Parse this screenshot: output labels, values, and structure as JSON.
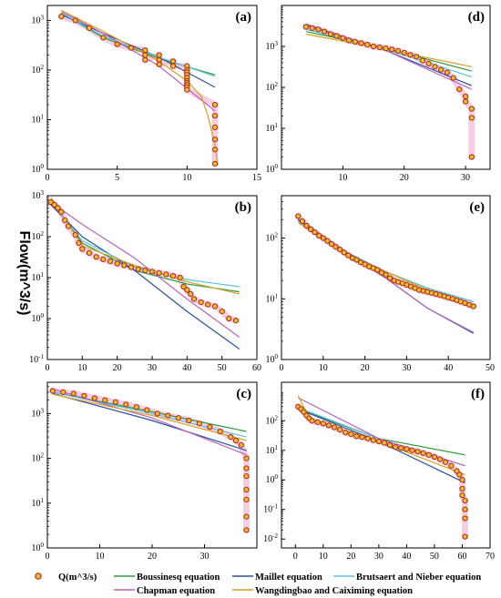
{
  "figure": {
    "ylabel": "Flow(m^3/s)",
    "colors": {
      "observed": "#b22222",
      "observed_fill": "#f0c020",
      "obs_band": "#f3c6da",
      "Boussinesq": "#2f9a3a",
      "Maillet": "#2b4fa0",
      "Brutsaert": "#5bc3e0",
      "Chapman": "#b864c0",
      "Wangdingbao": "#d8a020"
    }
  },
  "legend": {
    "observed": "Q(m^3/s)",
    "boussinesq": "Boussinesq equation",
    "maillet": "Maillet equation",
    "brutsaert": "Brutsaert and Nieber equation",
    "chapman": "Chapman equation",
    "wangdingbao": "Wangdingbao and Caiximing equation"
  },
  "chart_data": [
    {
      "panel": "(a)",
      "type": "scatter",
      "ylog": true,
      "xlim": [
        0,
        15
      ],
      "xticks": [
        0,
        5,
        10,
        15
      ],
      "ylim": [
        1,
        2000
      ],
      "yticks": [
        "10^0",
        "10^1",
        "10^2",
        "10^3"
      ],
      "observed": {
        "x": [
          1,
          2,
          3,
          4,
          5,
          6,
          7,
          7,
          7,
          8,
          8,
          8,
          9,
          9,
          10,
          10,
          10,
          10,
          10,
          10,
          10,
          10,
          10,
          10,
          12,
          12,
          12,
          12,
          12,
          12
        ],
        "y": [
          1200,
          1000,
          700,
          450,
          330,
          280,
          250,
          200,
          160,
          200,
          160,
          130,
          150,
          120,
          120,
          100,
          90,
          80,
          70,
          60,
          55,
          50,
          45,
          40,
          20,
          12,
          7,
          4,
          2.5,
          1.3
        ]
      },
      "series": [
        {
          "name": "Boussinesq equation",
          "x": [
            1,
            4,
            8,
            12
          ],
          "y": [
            1400,
            450,
            170,
            80
          ]
        },
        {
          "name": "Maillet equation",
          "x": [
            1,
            4,
            8,
            12
          ],
          "y": [
            1300,
            550,
            180,
            45
          ]
        },
        {
          "name": "Brutsaert and Nieber equation",
          "x": [
            1,
            4,
            8,
            12
          ],
          "y": [
            1400,
            480,
            180,
            75
          ]
        },
        {
          "name": "Chapman equation",
          "x": [
            1,
            4,
            8,
            12
          ],
          "y": [
            1500,
            550,
            120,
            15
          ]
        },
        {
          "name": "Wangdingbao and Caiximing equation",
          "x": [
            1,
            4,
            8,
            10,
            11,
            11.5,
            12,
            12.2
          ],
          "y": [
            1600,
            600,
            150,
            60,
            30,
            12,
            3,
            1.2
          ]
        }
      ]
    },
    {
      "panel": "(d)",
      "type": "scatter",
      "ylog": true,
      "xlim": [
        0,
        34
      ],
      "xticks": [
        10,
        20,
        30
      ],
      "ylim": [
        1,
        10000
      ],
      "yticks": [
        "10^0",
        "10^1",
        "10^2",
        "10^3"
      ],
      "observed": {
        "x": [
          4,
          5,
          6,
          7,
          8,
          9,
          10,
          11,
          12,
          13,
          14,
          15,
          16,
          17,
          18,
          19,
          20,
          21,
          22,
          23,
          24,
          25,
          26,
          27,
          28,
          29,
          30,
          30,
          31,
          31,
          31
        ],
        "y": [
          3000,
          2800,
          2600,
          2300,
          2000,
          1800,
          1600,
          1400,
          1300,
          1200,
          1100,
          1000,
          950,
          900,
          850,
          780,
          700,
          620,
          560,
          450,
          380,
          320,
          270,
          230,
          170,
          90,
          60,
          45,
          30,
          18,
          2
        ]
      },
      "series": [
        {
          "name": "Boussinesq equation",
          "x": [
            4,
            17,
            31
          ],
          "y": [
            2300,
            900,
            250
          ]
        },
        {
          "name": "Maillet equation",
          "x": [
            4,
            17,
            31
          ],
          "y": [
            3300,
            800,
            110
          ]
        },
        {
          "name": "Brutsaert and Nieber equation",
          "x": [
            4,
            17,
            31
          ],
          "y": [
            2600,
            850,
            180
          ]
        },
        {
          "name": "Chapman equation",
          "x": [
            4,
            17,
            31
          ],
          "y": [
            3500,
            800,
            90
          ]
        },
        {
          "name": "Wangdingbao and Caiximing equation",
          "x": [
            4,
            17,
            31
          ],
          "y": [
            2000,
            850,
            320
          ]
        }
      ]
    },
    {
      "panel": "(b)",
      "type": "scatter",
      "ylog": true,
      "xlim": [
        0,
        60
      ],
      "xticks": [
        0,
        10,
        20,
        30,
        40,
        50,
        60
      ],
      "ylim": [
        0.1,
        1000
      ],
      "yticks": [
        "10^-1",
        "10^0",
        "10^1",
        "10^2",
        "10^3"
      ],
      "observed": {
        "x": [
          1,
          2,
          3,
          4,
          5,
          6,
          8,
          9,
          10,
          12,
          14,
          16,
          18,
          20,
          22,
          24,
          26,
          28,
          30,
          32,
          34,
          36,
          38,
          39,
          40,
          41,
          42,
          44,
          46,
          48,
          50,
          52,
          54
        ],
        "y": [
          700,
          600,
          500,
          400,
          250,
          180,
          110,
          70,
          50,
          40,
          32,
          28,
          25,
          22,
          20,
          18,
          16,
          15,
          14,
          13,
          12,
          11,
          10,
          6,
          5,
          4,
          3,
          2.5,
          2.2,
          2.0,
          1.5,
          1.0,
          0.9
        ]
      },
      "series": [
        {
          "name": "Boussinesq equation",
          "x": [
            1,
            10,
            25,
            40,
            55
          ],
          "y": [
            800,
            70,
            15,
            7,
            4.5
          ]
        },
        {
          "name": "Maillet equation",
          "x": [
            1,
            10,
            25,
            40,
            55
          ],
          "y": [
            600,
            100,
            15,
            1.5,
            0.18
          ]
        },
        {
          "name": "Brutsaert and Nieber equation",
          "x": [
            1,
            10,
            25,
            40,
            55
          ],
          "y": [
            700,
            80,
            18,
            9,
            6
          ]
        },
        {
          "name": "Chapman equation",
          "x": [
            1,
            10,
            25,
            40,
            55
          ],
          "y": [
            700,
            200,
            30,
            3,
            0.35
          ]
        },
        {
          "name": "Wangdingbao and Caiximing equation",
          "x": [
            1,
            10,
            25,
            40,
            55
          ],
          "y": [
            900,
            60,
            20,
            8,
            4
          ]
        }
      ]
    },
    {
      "panel": "(e)",
      "type": "scatter",
      "ylog": true,
      "xlim": [
        0,
        50
      ],
      "xticks": [
        0,
        10,
        20,
        30,
        40,
        50
      ],
      "ylim": [
        1,
        500
      ],
      "yticks": [
        "10^0",
        "10^1",
        "10^2"
      ],
      "observed": {
        "x": [
          4,
          5,
          6,
          7,
          8,
          9,
          10,
          11,
          12,
          13,
          14,
          15,
          16,
          17,
          18,
          19,
          20,
          21,
          22,
          23,
          24,
          25,
          26,
          27,
          28,
          29,
          30,
          31,
          32,
          33,
          34,
          35,
          36,
          37,
          38,
          39,
          40,
          41,
          42,
          43,
          44,
          45,
          46
        ],
        "y": [
          230,
          190,
          160,
          140,
          125,
          110,
          100,
          90,
          80,
          72,
          65,
          58,
          52,
          47,
          44,
          40,
          37,
          34,
          32,
          30,
          27,
          25,
          22,
          20,
          19,
          18,
          17,
          16,
          15,
          14,
          13.5,
          13,
          12.5,
          12,
          11.5,
          11,
          10.5,
          10,
          9.5,
          9,
          8.5,
          8,
          7.5
        ]
      },
      "series": [
        {
          "name": "Boussinesq equation",
          "x": [
            4,
            15,
            25,
            35,
            46
          ],
          "y": [
            200,
            60,
            28,
            15,
            9
          ]
        },
        {
          "name": "Maillet equation",
          "x": [
            4,
            15,
            25,
            35,
            46
          ],
          "y": [
            200,
            60,
            22,
            7,
            2.7
          ]
        },
        {
          "name": "Brutsaert and Nieber equation",
          "x": [
            4,
            15,
            25,
            35,
            46
          ],
          "y": [
            190,
            62,
            28,
            15,
            9
          ]
        },
        {
          "name": "Chapman equation",
          "x": [
            4,
            15,
            25,
            35,
            46
          ],
          "y": [
            210,
            62,
            22,
            7,
            2.8
          ]
        },
        {
          "name": "Wangdingbao and Caiximing equation",
          "x": [
            4,
            15,
            25,
            35,
            46
          ],
          "y": [
            180,
            58,
            28,
            14,
            8
          ]
        }
      ]
    },
    {
      "panel": "(c)",
      "type": "scatter",
      "ylog": true,
      "xlim": [
        0,
        40
      ],
      "xticks": [
        0,
        10,
        20,
        30
      ],
      "ylim": [
        1,
        5000
      ],
      "yticks": [
        "10^0",
        "10^1",
        "10^2",
        "10^3"
      ],
      "observed": {
        "x": [
          1,
          3,
          5,
          7,
          9,
          11,
          13,
          15,
          17,
          19,
          21,
          23,
          25,
          27,
          29,
          31,
          33,
          35,
          36,
          37,
          38,
          38,
          38,
          38,
          38,
          38,
          38
        ],
        "y": [
          3200,
          3000,
          2800,
          2500,
          2200,
          2000,
          1800,
          1600,
          1400,
          1200,
          1000,
          900,
          800,
          700,
          600,
          500,
          400,
          300,
          250,
          200,
          100,
          60,
          40,
          20,
          12,
          5,
          2.5
        ]
      },
      "series": [
        {
          "name": "Boussinesq equation",
          "x": [
            1,
            20,
            38
          ],
          "y": [
            3000,
            1100,
            400
          ]
        },
        {
          "name": "Maillet equation",
          "x": [
            1,
            20,
            38
          ],
          "y": [
            2800,
            700,
            150
          ]
        },
        {
          "name": "Brutsaert and Nieber equation",
          "x": [
            1,
            20,
            38
          ],
          "y": [
            3000,
            1000,
            300
          ]
        },
        {
          "name": "Chapman equation",
          "x": [
            1,
            20,
            38
          ],
          "y": [
            3500,
            800,
            120
          ]
        },
        {
          "name": "Wangdingbao and Caiximing equation",
          "x": [
            1,
            20,
            38
          ],
          "y": [
            2700,
            900,
            250
          ]
        }
      ]
    },
    {
      "panel": "(f)",
      "type": "scatter",
      "ylog": true,
      "xlim": [
        -5,
        70
      ],
      "xticks": [
        0,
        10,
        20,
        30,
        40,
        50,
        60,
        70
      ],
      "ylim": [
        0.005,
        2000
      ],
      "yticks": [
        "10^-2",
        "10^-1",
        "10^0",
        "10^1",
        "10^2"
      ],
      "observed": {
        "x": [
          1,
          2,
          3,
          4,
          5,
          6,
          8,
          10,
          12,
          14,
          16,
          18,
          20,
          22,
          24,
          26,
          28,
          30,
          32,
          34,
          36,
          38,
          40,
          42,
          44,
          46,
          48,
          50,
          52,
          54,
          56,
          58,
          59,
          60,
          60,
          60,
          61,
          61,
          61,
          61
        ],
        "y": [
          300,
          250,
          200,
          150,
          120,
          100,
          90,
          80,
          70,
          60,
          50,
          40,
          35,
          30,
          28,
          25,
          22,
          20,
          18,
          15,
          13,
          12,
          11,
          10,
          9,
          8,
          7,
          6,
          5,
          4,
          3,
          2,
          1.5,
          1,
          0.5,
          0.3,
          0.2,
          0.1,
          0.05,
          0.012
        ]
      },
      "series": [
        {
          "name": "Boussinesq equation",
          "x": [
            1,
            30,
            61
          ],
          "y": [
            250,
            25,
            7
          ]
        },
        {
          "name": "Maillet equation",
          "x": [
            1,
            30,
            61
          ],
          "y": [
            250,
            20,
            0.8
          ]
        },
        {
          "name": "Brutsaert and Nieber equation",
          "x": [
            1,
            30,
            61
          ],
          "y": [
            280,
            25,
            3
          ]
        },
        {
          "name": "Chapman equation",
          "x": [
            1,
            30,
            61
          ],
          "y": [
            600,
            25,
            3
          ]
        },
        {
          "name": "Wangdingbao and Caiximing equation",
          "x": [
            1,
            5,
            30,
            61
          ],
          "y": [
            700,
            120,
            20,
            1.5
          ]
        }
      ]
    }
  ]
}
